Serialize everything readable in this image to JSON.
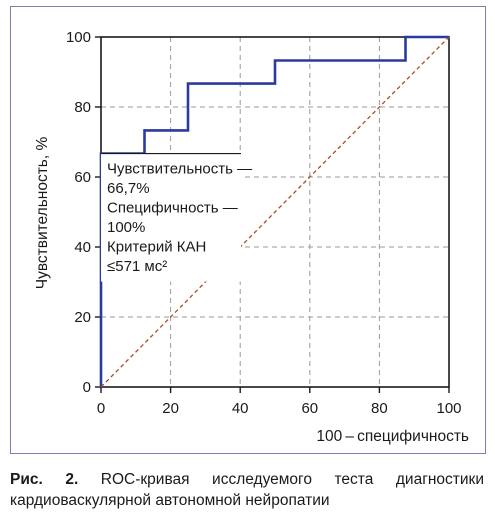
{
  "chart_data": {
    "type": "line",
    "xlabel": "100 – специфичность",
    "ylabel": "Чувствительность, %",
    "xlim": [
      0,
      100
    ],
    "ylim": [
      0,
      100
    ],
    "xticks": [
      0,
      20,
      40,
      60,
      80,
      100
    ],
    "yticks": [
      0,
      20,
      40,
      60,
      80,
      100
    ],
    "grid": true,
    "series": [
      {
        "kind": "roc-step",
        "color": "#2b3a9e",
        "x": [
          0,
          0,
          12.5,
          12.5,
          25,
          25,
          50,
          50,
          87.5,
          87.5,
          100
        ],
        "y": [
          0,
          66.7,
          66.7,
          73.3,
          73.3,
          86.7,
          86.7,
          93.3,
          93.3,
          100,
          100
        ]
      },
      {
        "kind": "reference-diagonal",
        "color": "#b04a2a",
        "x": [
          0,
          100
        ],
        "y": [
          0,
          100
        ]
      }
    ],
    "annotation": {
      "point": [
        0,
        66.7
      ],
      "lines": [
        "Чувствительность —",
        "66,7%",
        "Специфичность —",
        "100%",
        "Критерий КАН",
        "≤571 мс²"
      ]
    }
  },
  "caption": {
    "label": "Рис. 2.",
    "text": "ROC-кривая исследуемого теста диагностики кардиоваскулярной автономной нейропатии"
  }
}
